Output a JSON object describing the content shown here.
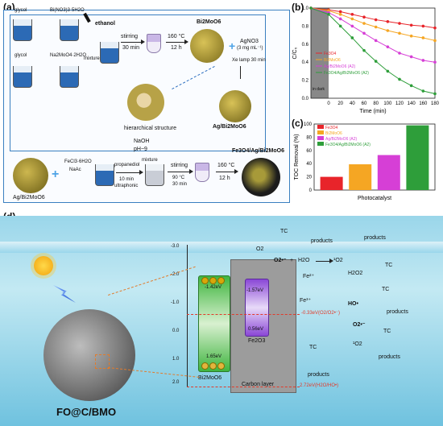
{
  "panel_a": {
    "label": "(a)",
    "glycol_1": "glycol",
    "bi_salt": "Bi(NO3)3·5H2O",
    "ethanol": "ethanol",
    "glycol_2": "glycol",
    "mo_salt": "Na2MoO4·2H2O",
    "mixture_1": "mixture",
    "stirring_1": "stirring",
    "time_1": "30 min",
    "temp_1": "160 °C",
    "time_12h_1": "12 h",
    "bi2moo6": "Bi2MoO6",
    "agno3": "AgNO3",
    "agno3_conc": "(3 mg mL⁻¹)",
    "xe_lamp": "Xe lamp 30 min",
    "hier": "hierarchical structure",
    "ag_bmo": "Ag/Bi2MoO6",
    "naoh": "NaOH",
    "ph": "pH~9",
    "fecl3": "FeCl3·6H2O",
    "naac": "NaAc",
    "propanediol": "propanediol",
    "min10": "10 min",
    "ultra": "ultraphonic",
    "mixture_2": "mixture",
    "stirring_2": "stirring",
    "temp_90": "90 °C",
    "time_2": "30 min",
    "temp_2": "160 °C",
    "time_12h_2": "12 h",
    "product": "Fe3O4/Ag/Bi2MoO6",
    "ag_bmo_bottom": "Ag/Bi2MoO6"
  },
  "panel_b": {
    "label": "(b)",
    "in_dark": "in dark",
    "colors": [
      "#e8242a",
      "#f5a623",
      "#d63fd6",
      "#2e9e3a"
    ],
    "chart_data": {
      "type": "line",
      "xlabel": "Time (min)",
      "ylabel": "C/C₀",
      "x": [
        -30,
        0,
        20,
        40,
        60,
        80,
        100,
        120,
        140,
        160,
        180
      ],
      "xticks": [
        0,
        20,
        40,
        60,
        80,
        100,
        120,
        140,
        160,
        180
      ],
      "yticks": [
        0.0,
        0.2,
        0.4,
        0.6,
        0.8,
        1.0
      ],
      "xlim": [
        0,
        180
      ],
      "ylim": [
        0,
        1.0
      ],
      "series": [
        {
          "name": "Fe3O4",
          "values": [
            1.0,
            0.98,
            0.96,
            0.93,
            0.9,
            0.87,
            0.85,
            0.83,
            0.81,
            0.8,
            0.78
          ]
        },
        {
          "name": "Bi2MoO6",
          "values": [
            1.0,
            0.97,
            0.93,
            0.88,
            0.83,
            0.79,
            0.75,
            0.72,
            0.69,
            0.67,
            0.64
          ]
        },
        {
          "name": "Ag/Bi2MoO6 (A2)",
          "values": [
            1.0,
            0.95,
            0.88,
            0.8,
            0.72,
            0.64,
            0.57,
            0.5,
            0.46,
            0.42,
            0.4
          ]
        },
        {
          "name": "Fe3O4/Ag/Bi2MoO6 (A2)",
          "values": [
            1.0,
            0.93,
            0.8,
            0.67,
            0.53,
            0.41,
            0.3,
            0.21,
            0.14,
            0.08,
            0.05
          ]
        }
      ]
    }
  },
  "panel_c": {
    "label": "(c)",
    "chart_data": {
      "type": "bar",
      "xlabel": "Photocatalyst",
      "ylabel": "TOC Removal (%)",
      "categories": [
        "Fe3O4",
        "Bi2MoO6",
        "Ag/Bi2MoO6 (A2)",
        "Fe3O4/Ag/Bi2MoO6 (A2)"
      ],
      "values": [
        20,
        39,
        53,
        98
      ],
      "ylim": [
        0,
        100
      ],
      "yticks": [
        0,
        20,
        40,
        60,
        80,
        100
      ],
      "colors": [
        "#e8242a",
        "#f5a623",
        "#d63fd6",
        "#2e9e3a"
      ]
    }
  },
  "panel_d": {
    "label": "(d)",
    "axis_ticks": [
      "-3.0",
      "-2.0",
      "-1.0",
      "0.0",
      "1.0",
      "2.0"
    ],
    "bmo_cb": "-1.42eV",
    "bmo_vb": "1.65eV",
    "bmo_name": "Bi2MoO6",
    "fe2o3_cb": "-1.57eV",
    "fe2o3_vb": "0.56eV",
    "fe2o3_name": "Fe2O3",
    "carbon": "Carbon layer",
    "o2": "O2",
    "tc1": "TC",
    "products1": "products",
    "superoxide": "O2•⁻",
    "plus": "+",
    "h2o": "H2O",
    "singlet1": "¹O2",
    "products2": "products",
    "tc2": "TC",
    "fe2": "Fe²⁺",
    "fe3": "Fe³⁺",
    "h2o2": "H2O2",
    "ho": "HO•",
    "tc3": "TC",
    "products3": "products",
    "redox1": "-0.33eV(O2/O2•⁻)",
    "sup2": "O2•⁻",
    "singlet2": "¹O2",
    "tc4": "TC",
    "products4": "products",
    "tc5": "TC",
    "products5": "products",
    "redox2": "2.72eV(H2O/HO•)",
    "material": "FO@C/BMO"
  }
}
